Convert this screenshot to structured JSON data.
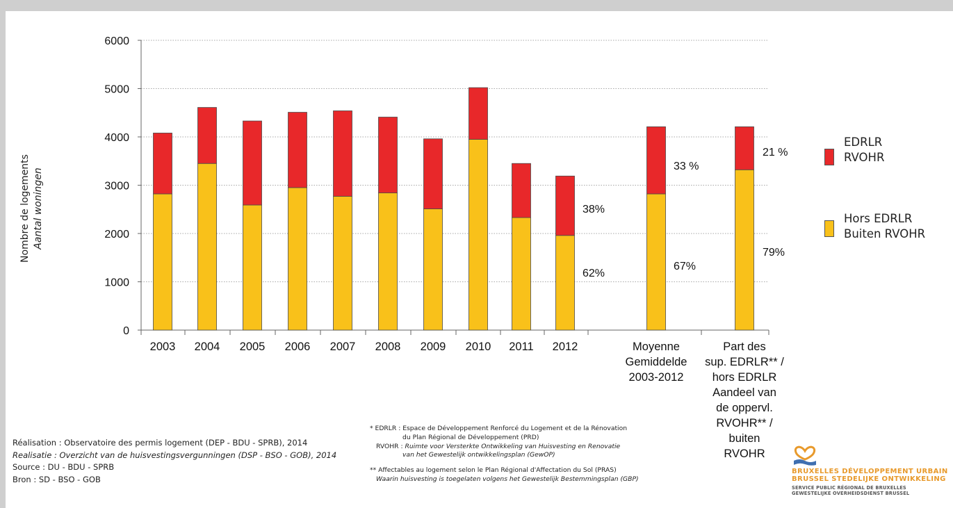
{
  "chart_data": {
    "type": "bar",
    "stacked": true,
    "categories": [
      "2003",
      "2004",
      "2005",
      "2006",
      "2007",
      "2008",
      "2009",
      "2010",
      "2011",
      "2012",
      "Moyenne Gemiddelde 2003-2012",
      "Part des sup. EDRLR** / hors EDRLR Aandeel van de oppervl. RVOHR** / buiten RVOHR"
    ],
    "category_labels": [
      [
        "2003"
      ],
      [
        "2004"
      ],
      [
        "2005"
      ],
      [
        "2006"
      ],
      [
        "2007"
      ],
      [
        "2008"
      ],
      [
        "2009"
      ],
      [
        "2010"
      ],
      [
        "2011"
      ],
      [
        "2012"
      ],
      [
        "Moyenne",
        "Gemiddelde",
        "2003-2012"
      ],
      [
        "Part des",
        "sup. EDRLR** /",
        "hors EDRLR",
        "Aandeel van",
        "de oppervl.",
        "RVOHR** /",
        "buiten",
        "RVOHR"
      ]
    ],
    "series": [
      {
        "name": "Hors EDRLR Buiten RVOHR",
        "legend": [
          "Hors EDRLR",
          "Buiten RVOHR"
        ],
        "color": "#f9c11a",
        "values": [
          2820,
          3450,
          2590,
          2950,
          2770,
          2840,
          2510,
          3950,
          2330,
          1960,
          2820,
          3320
        ]
      },
      {
        "name": "EDRLR RVOHR",
        "legend": [
          "EDRLR",
          "RVOHR"
        ],
        "color": "#e8282a",
        "values": [
          1260,
          1160,
          1740,
          1560,
          1770,
          1570,
          1450,
          1070,
          1120,
          1230,
          1390,
          890
        ]
      }
    ],
    "ylim": [
      0,
      6000
    ],
    "yticks": [
      0,
      1000,
      2000,
      3000,
      4000,
      5000,
      6000
    ],
    "ylabel": "Nombre de logements",
    "ylabel_nl": "Aantal woningen",
    "grid": "horizontal dotted",
    "legend_position": "right",
    "annotations": [
      {
        "category": "2012",
        "series": "EDRLR RVOHR",
        "text": "38%"
      },
      {
        "category": "2012",
        "series": "Hors EDRLR Buiten RVOHR",
        "text": "62%"
      },
      {
        "category": "Moyenne Gemiddelde 2003-2012",
        "series": "EDRLR RVOHR",
        "text": "33 %"
      },
      {
        "category": "Moyenne Gemiddelde 2003-2012",
        "series": "Hors EDRLR Buiten RVOHR",
        "text": "67%"
      },
      {
        "category": "Part des sup. EDRLR** / hors EDRLR Aandeel van de oppervl. RVOHR** / buiten RVOHR",
        "series": "EDRLR RVOHR",
        "text": "21 %"
      },
      {
        "category": "Part des sup. EDRLR** / hors EDRLR Aandeel van de oppervl. RVOHR** / buiten RVOHR",
        "series": "Hors EDRLR Buiten RVOHR",
        "text": "79%"
      }
    ]
  },
  "footer": {
    "realisation": "Réalisation : Observatoire des permis logement (DEP - BDU - SPRB), 2014",
    "realisatie": "Realisatie : Overzicht van de huisvestingsvergunningen (DSP - BSO - GOB), 2014",
    "source": "Source : DU - BDU - SPRB",
    "bron": "Bron : SD - BSO - GOB"
  },
  "notes": {
    "edrlr_1": "* EDRLR :  Espace de Développement Renforcé du Logement et de la Rénovation",
    "edrlr_2": "du Plan Régional de Développement (PRD)",
    "rvohr_label": "RVOHR :",
    "rvohr_1": "Ruimte voor Versterkte Ontwikkeling van Huisvesting en Renovatie",
    "rvohr_2": "van het Gewestelijk ontwikkelingsplan (GewOP)",
    "pras": "** Affectables au logement selon le Plan Régional d'Affectation du Sol (PRAS)",
    "gbp": "Waarin huisvesting is toegelaten volgens het Gewestelijk Bestemmingsplan (GBP)"
  },
  "logo": {
    "line1": "BRUXELLES DÉVELOPPEMENT URBAIN",
    "line2": "BRUSSEL STEDELIJKE ONTWIKKELING",
    "line3": "SERVICE PUBLIC RÉGIONAL DE BRUXELLES",
    "line4": "GEWESTELIJKE OVERHEIDSDIENST BRUSSEL",
    "color": "#e89a2c"
  }
}
